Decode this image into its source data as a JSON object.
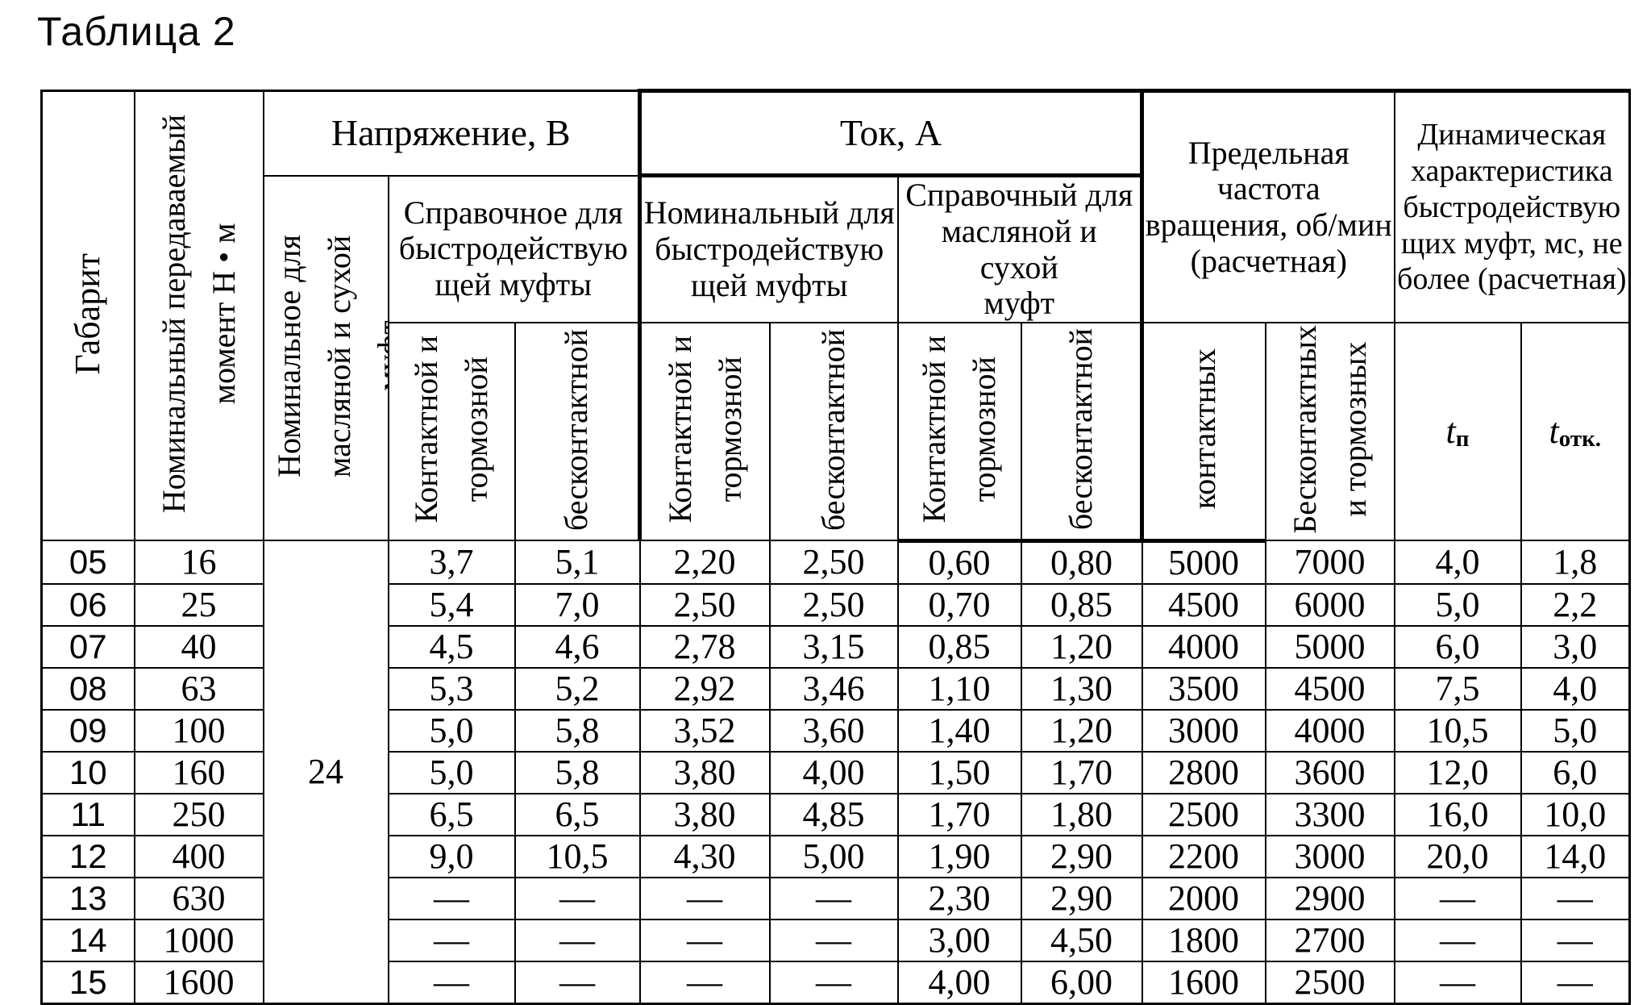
{
  "title": "Таблица 2",
  "table": {
    "columns": {
      "gabarit": "Габарит",
      "moment": "Номинальный передаваемый\nмомент Н • м",
      "voltage_group": "Напряжение, В",
      "voltage_nominal_oil_dry": "Номинальное для\nмасляной и сухой\nмуфт",
      "voltage_ref_fast": "Справочное для\nбыстродействую\nщей муфты",
      "current_group": "Ток, А",
      "current_nominal_fast": "Номинальный для\nбыстродействую\nщей муфты",
      "current_ref_oil_dry": "Справочный для\nмасляной и сухой\nмуфт",
      "contact_brake": "Контактной и\nтормозной",
      "contactless": "бесконтактной",
      "speed_limit_group": "Предельная\nчастота\nвращения, об/мин\n(расчетная)",
      "speed_contact": "контактных",
      "speed_contactless_brake": "Бесконтактных\nи тормозных",
      "dynamic_group": "Динамическая\nхарактеристика\nбыстродействую\nщих муфт, мс, не\nболее (расчетная)",
      "t_on": {
        "base": "t",
        "sub": "п"
      },
      "t_off": {
        "base": "t",
        "sub": "отк."
      }
    },
    "merged_nominal_voltage": "24",
    "rows": [
      [
        "05",
        "16",
        "3,7",
        "5,1",
        "2,20",
        "2,50",
        "0,60",
        "0,80",
        "5000",
        "7000",
        "4,0",
        "1,8"
      ],
      [
        "06",
        "25",
        "5,4",
        "7,0",
        "2,50",
        "2,50",
        "0,70",
        "0,85",
        "4500",
        "6000",
        "5,0",
        "2,2"
      ],
      [
        "07",
        "40",
        "4,5",
        "4,6",
        "2,78",
        "3,15",
        "0,85",
        "1,20",
        "4000",
        "5000",
        "6,0",
        "3,0"
      ],
      [
        "08",
        "63",
        "5,3",
        "5,2",
        "2,92",
        "3,46",
        "1,10",
        "1,30",
        "3500",
        "4500",
        "7,5",
        "4,0"
      ],
      [
        "09",
        "100",
        "5,0",
        "5,8",
        "3,52",
        "3,60",
        "1,40",
        "1,20",
        "3000",
        "4000",
        "10,5",
        "5,0"
      ],
      [
        "10",
        "160",
        "5,0",
        "5,8",
        "3,80",
        "4,00",
        "1,50",
        "1,70",
        "2800",
        "3600",
        "12,0",
        "6,0"
      ],
      [
        "11",
        "250",
        "6,5",
        "6,5",
        "3,80",
        "4,85",
        "1,70",
        "1,80",
        "2500",
        "3300",
        "16,0",
        "10,0"
      ],
      [
        "12",
        "400",
        "9,0",
        "10,5",
        "4,30",
        "5,00",
        "1,90",
        "2,90",
        "2200",
        "3000",
        "20,0",
        "14,0"
      ],
      [
        "13",
        "630",
        "—",
        "—",
        "—",
        "—",
        "2,30",
        "2,90",
        "2000",
        "2900",
        "—",
        "—"
      ],
      [
        "14",
        "1000",
        "—",
        "—",
        "—",
        "—",
        "3,00",
        "4,50",
        "1800",
        "2700",
        "—",
        "—"
      ],
      [
        "15",
        "1600",
        "—",
        "—",
        "—",
        "—",
        "4,00",
        "6,00",
        "1600",
        "2500",
        "—",
        "—"
      ]
    ]
  }
}
